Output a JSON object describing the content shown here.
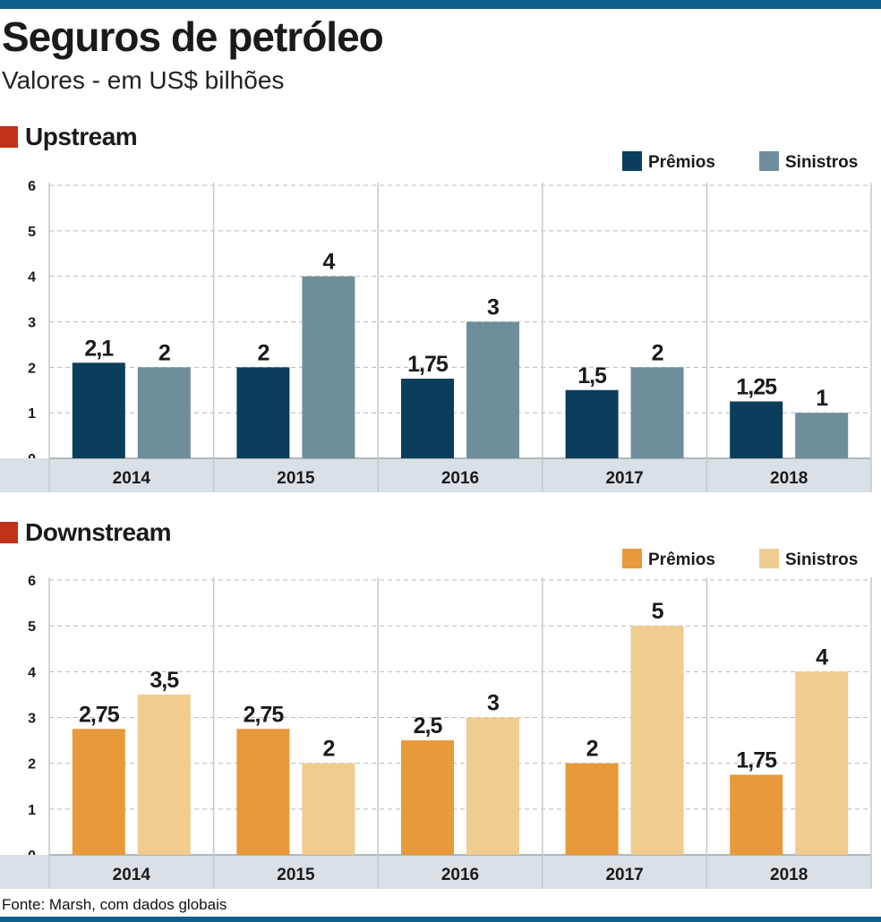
{
  "header": {
    "title": "Seguros de petróleo",
    "subtitle": "Valores - em US$ bilhões"
  },
  "footer": {
    "source": "Fonte: Marsh, com dados globais"
  },
  "colors": {
    "accent_bar": "#0d5f8c",
    "section_marker": "#c0311a",
    "axis_band": "#d9e1e7"
  },
  "chart_data": [
    {
      "type": "bar",
      "title": "Upstream",
      "categories": [
        "2014",
        "2015",
        "2016",
        "2017",
        "2018"
      ],
      "y_ticks": [
        "0",
        "1",
        "2",
        "3",
        "4",
        "5",
        "6"
      ],
      "ylim": [
        0,
        6
      ],
      "legend_position": "top-right",
      "grid": true,
      "series": [
        {
          "name": "Prêmios",
          "color": "#0b3d5c",
          "values": [
            2.1,
            2,
            1.75,
            1.5,
            1.25
          ],
          "labels": [
            "2,1",
            "2",
            "1,75",
            "1,5",
            "1,25"
          ]
        },
        {
          "name": "Sinistros",
          "color": "#6f8e9b",
          "values": [
            2,
            4,
            3,
            2,
            1
          ],
          "labels": [
            "2",
            "4",
            "3",
            "2",
            "1"
          ]
        }
      ]
    },
    {
      "type": "bar",
      "title": "Downstream",
      "categories": [
        "2014",
        "2015",
        "2016",
        "2017",
        "2018"
      ],
      "y_ticks": [
        "0",
        "1",
        "2",
        "3",
        "4",
        "5",
        "6"
      ],
      "ylim": [
        0,
        6
      ],
      "legend_position": "top-right",
      "grid": true,
      "series": [
        {
          "name": "Prêmios",
          "color": "#e8993a",
          "values": [
            2.75,
            2.75,
            2.5,
            2,
            1.75
          ],
          "labels": [
            "2,75",
            "2,75",
            "2,5",
            "2",
            "1,75"
          ]
        },
        {
          "name": "Sinistros",
          "color": "#f0cc8f",
          "values": [
            3.5,
            2,
            3,
            5,
            4
          ],
          "labels": [
            "3,5",
            "2",
            "3",
            "5",
            "4"
          ]
        }
      ]
    }
  ]
}
